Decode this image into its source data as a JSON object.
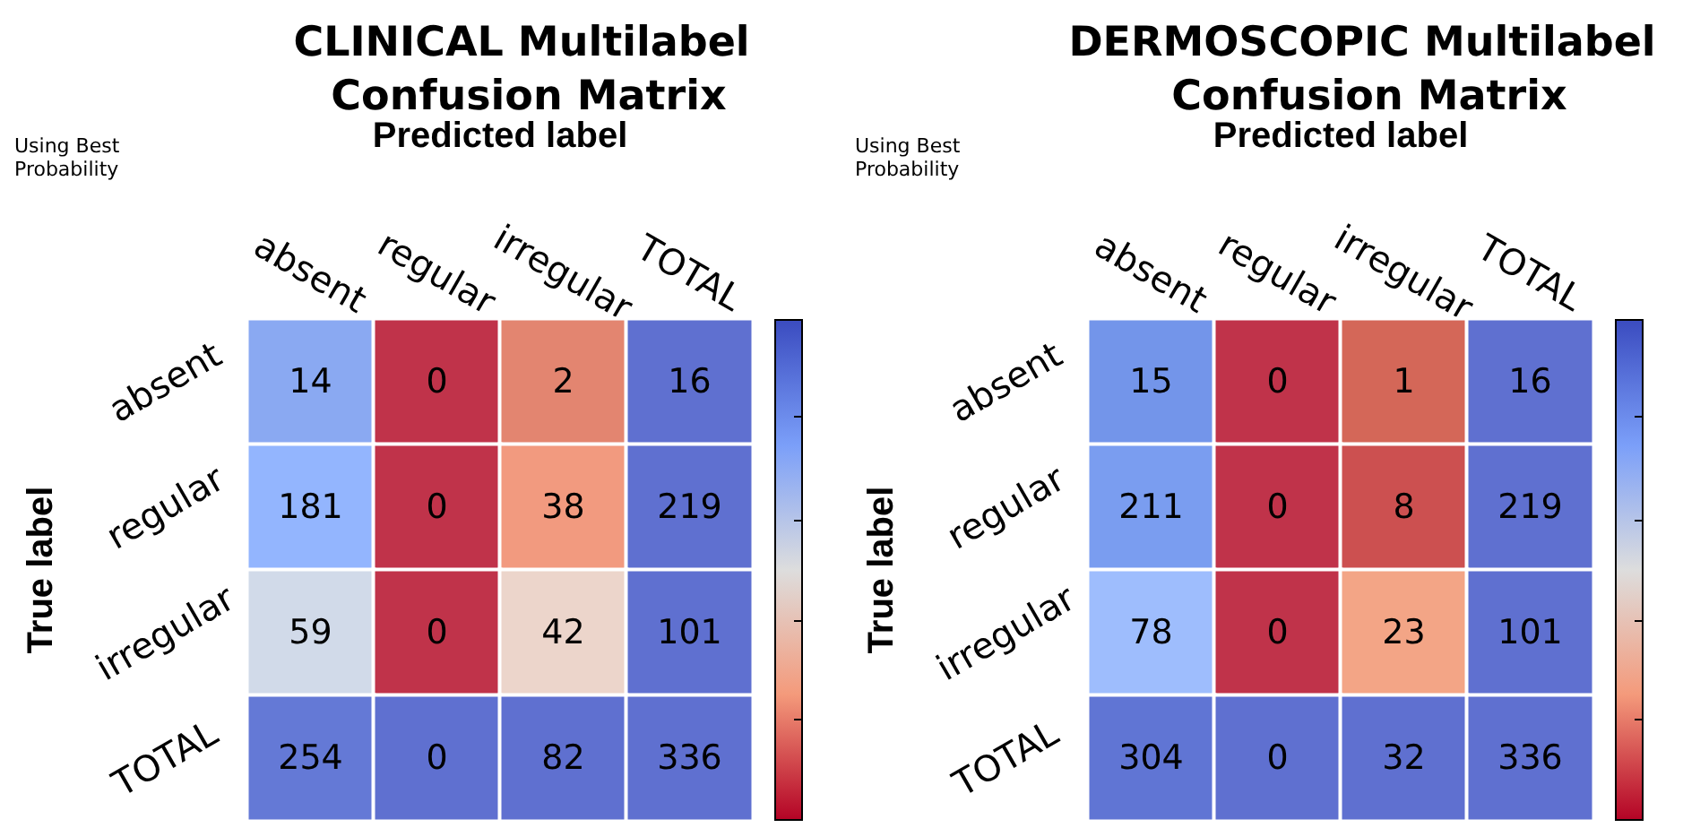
{
  "chart_data": [
    {
      "type": "heatmap",
      "title": "CLINICAL Multilabel Confusion Matrix",
      "xlabel": "Predicted label",
      "ylabel": "True label",
      "annotations": [
        "Using Best Probability"
      ],
      "categories": [
        "absent",
        "regular",
        "irregular",
        "TOTAL"
      ],
      "y_categories": [
        "absent",
        "regular",
        "irregular",
        "TOTAL"
      ],
      "cells": [
        [
          14,
          0,
          2,
          16
        ],
        [
          181,
          0,
          38,
          219
        ],
        [
          59,
          0,
          42,
          101
        ],
        [
          254,
          0,
          82,
          336
        ]
      ],
      "colors": [
        [
          "#8aa9f2",
          "#c0334a",
          "#e38570",
          "#5f70d0"
        ],
        [
          "#93b5fe",
          "#c0334a",
          "#f29a7f",
          "#5f70d0"
        ],
        [
          "#d1dae9",
          "#c0334a",
          "#ecd5cb",
          "#5f70d0"
        ],
        [
          "#6479d6",
          "#5f70d0",
          "#5f70d0",
          "#5f70d0"
        ]
      ],
      "data_labels": true
    },
    {
      "type": "heatmap",
      "title": "DERMOSCOPIC Multilabel Confusion Matrix",
      "xlabel": "Predicted label",
      "ylabel": "True label",
      "annotations": [
        "Using Best Probability"
      ],
      "categories": [
        "absent",
        "regular",
        "irregular",
        "TOTAL"
      ],
      "y_categories": [
        "absent",
        "regular",
        "irregular",
        "TOTAL"
      ],
      "cells": [
        [
          15,
          0,
          1,
          16
        ],
        [
          211,
          0,
          8,
          219
        ],
        [
          78,
          0,
          23,
          101
        ],
        [
          304,
          0,
          32,
          336
        ]
      ],
      "colors": [
        [
          "#7395ea",
          "#c0334a",
          "#d46758",
          "#5f70d0"
        ],
        [
          "#7a9df0",
          "#c0334a",
          "#cc5050",
          "#5f70d0"
        ],
        [
          "#9ebdfd",
          "#c0334a",
          "#f3a586",
          "#5f70d0"
        ],
        [
          "#6075d4",
          "#5f70d0",
          "#5f70d0",
          "#5f70d0"
        ]
      ],
      "data_labels": true
    }
  ]
}
